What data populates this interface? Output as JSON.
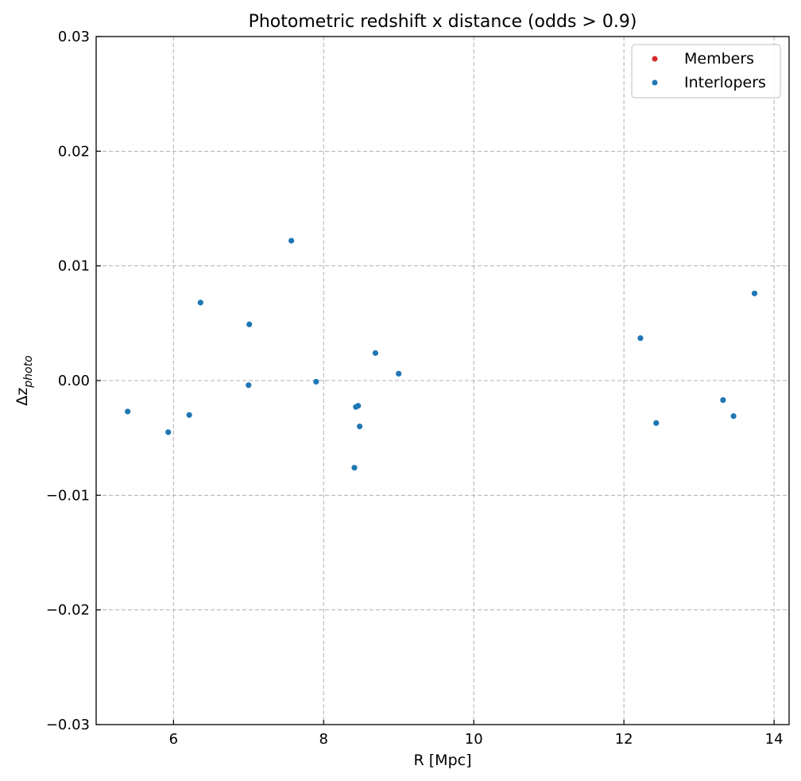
{
  "chart_data": {
    "type": "scatter",
    "title": "Photometric redshift x distance (odds > 0.9)",
    "xlabel": "R [Mpc]",
    "ylabel": "Δz",
    "ylabel_sub": "photo",
    "xlim": [
      4.97,
      14.2
    ],
    "ylim": [
      -0.03,
      0.03
    ],
    "xticks": [
      6,
      8,
      10,
      12,
      14
    ],
    "xtick_labels": [
      "6",
      "8",
      "10",
      "12",
      "14"
    ],
    "yticks": [
      -0.03,
      -0.02,
      -0.01,
      0.0,
      0.01,
      0.02,
      0.03
    ],
    "ytick_labels": [
      "−0.03",
      "−0.02",
      "−0.01",
      "0.00",
      "0.01",
      "0.02",
      "0.03"
    ],
    "grid": true,
    "legend_position": "top-right",
    "series": [
      {
        "name": "Members",
        "color": "#d62728",
        "points": []
      },
      {
        "name": "Interlopers",
        "color": "#1f77b4",
        "points": [
          [
            5.39,
            -0.0027
          ],
          [
            5.93,
            -0.0045
          ],
          [
            6.21,
            -0.003
          ],
          [
            6.36,
            0.0068
          ],
          [
            7.0,
            -0.0004
          ],
          [
            7.01,
            0.0049
          ],
          [
            7.57,
            0.0122
          ],
          [
            7.9,
            -0.0001
          ],
          [
            8.41,
            -0.0076
          ],
          [
            8.43,
            -0.0023
          ],
          [
            8.46,
            -0.0022
          ],
          [
            8.48,
            -0.004
          ],
          [
            8.69,
            0.0024
          ],
          [
            9.0,
            0.0006
          ],
          [
            12.22,
            0.0037
          ],
          [
            12.43,
            -0.0037
          ],
          [
            13.32,
            -0.0017
          ],
          [
            13.46,
            -0.0031
          ],
          [
            13.74,
            0.0076
          ]
        ]
      }
    ]
  }
}
